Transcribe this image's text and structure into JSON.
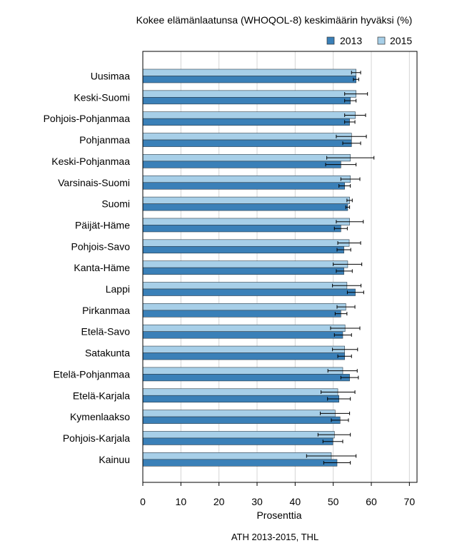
{
  "chart_data": {
    "type": "bar",
    "orientation": "horizontal",
    "title": "Kokee elämänlaatunsa (WHOQOL-8) keskimäärin hyväksi (%)",
    "xlabel": "Prosenttia",
    "ylabel": "",
    "source": "ATH 2013-2015, THL",
    "xlim": [
      0,
      72
    ],
    "xticks": [
      0,
      10,
      20,
      30,
      40,
      50,
      60,
      70
    ],
    "grid": "vertical",
    "legend_position": "top-right",
    "colors": {
      "2013": "#3a80b8",
      "2015": "#a7cfe8"
    },
    "categories": [
      "Uusimaa",
      "Keski-Suomi",
      "Pohjois-Pohjanmaa",
      "Pohjanmaa",
      "Keski-Pohjanmaa",
      "Varsinais-Suomi",
      "Suomi",
      "Päijät-Häme",
      "Pohjois-Savo",
      "Kanta-Häme",
      "Lappi",
      "Pirkanmaa",
      "Etelä-Savo",
      "Satakunta",
      "Etelä-Pohjanmaa",
      "Etelä-Karjala",
      "Kymenlaakso",
      "Pohjois-Karjala",
      "Kainuu"
    ],
    "series": [
      {
        "name": "2013",
        "values": [
          56.0,
          54.5,
          54.3,
          54.8,
          52.0,
          53.0,
          53.8,
          52.0,
          52.8,
          52.8,
          55.8,
          52.0,
          52.5,
          53.0,
          54.3,
          51.5,
          51.8,
          49.9,
          51.0
        ],
        "error": [
          [
            55.3,
            56.7
          ],
          [
            53.0,
            56.0
          ],
          [
            53.0,
            55.7
          ],
          [
            52.5,
            57.2
          ],
          [
            48.0,
            56.0
          ],
          [
            51.5,
            54.5
          ],
          [
            53.3,
            54.3
          ],
          [
            50.3,
            53.7
          ],
          [
            51.0,
            54.6
          ],
          [
            50.8,
            55.0
          ],
          [
            53.7,
            58.0
          ],
          [
            50.5,
            53.6
          ],
          [
            50.3,
            54.8
          ],
          [
            51.2,
            54.8
          ],
          [
            52.0,
            56.6
          ],
          [
            48.5,
            54.5
          ],
          [
            49.5,
            54.0
          ],
          [
            47.3,
            52.5
          ],
          [
            47.5,
            54.5
          ]
        ]
      },
      {
        "name": "2015",
        "values": [
          56.0,
          56.0,
          55.8,
          54.8,
          54.5,
          54.5,
          54.3,
          54.3,
          54.2,
          53.8,
          53.6,
          53.3,
          53.1,
          53.0,
          52.5,
          51.2,
          50.5,
          50.3,
          49.5
        ],
        "error": [
          [
            54.8,
            57.2
          ],
          [
            53.0,
            59.0
          ],
          [
            53.0,
            58.5
          ],
          [
            50.8,
            58.7
          ],
          [
            48.3,
            60.7
          ],
          [
            52.0,
            57.0
          ],
          [
            53.6,
            55.0
          ],
          [
            50.8,
            57.9
          ],
          [
            51.2,
            57.2
          ],
          [
            50.0,
            57.5
          ],
          [
            49.8,
            57.3
          ],
          [
            51.0,
            55.7
          ],
          [
            49.3,
            57.0
          ],
          [
            49.8,
            56.4
          ],
          [
            48.6,
            56.3
          ],
          [
            46.8,
            55.7
          ],
          [
            46.6,
            54.3
          ],
          [
            46.0,
            54.5
          ],
          [
            43.0,
            56.0
          ]
        ]
      }
    ]
  }
}
